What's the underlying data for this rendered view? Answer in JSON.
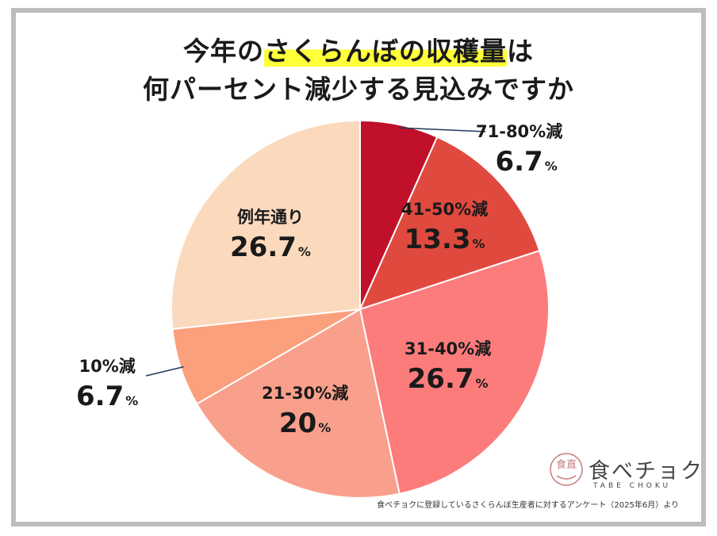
{
  "title": {
    "line1_prefix": "今年の",
    "line1_highlight": "さくらんぼの収穫量",
    "line1_suffix": "は",
    "line2": "何パーセント減少する見込みですか"
  },
  "chart_data": {
    "type": "pie",
    "slices": [
      {
        "label": "71-80%減",
        "value": 6.7,
        "display": "6.7",
        "color": "#c0102a"
      },
      {
        "label": "41-50%減",
        "value": 13.3,
        "display": "13.3",
        "color": "#e04a3e"
      },
      {
        "label": "31-40%減",
        "value": 26.7,
        "display": "26.7",
        "color": "#fc7c7c"
      },
      {
        "label": "21-30%減",
        "value": 20,
        "display": "20",
        "color": "#f9a08c"
      },
      {
        "label": "10%減",
        "value": 6.7,
        "display": "6.7",
        "color": "#fba07c"
      },
      {
        "label": "例年通り",
        "value": 26.7,
        "display": "26.7",
        "color": "#fbd9bd"
      }
    ],
    "unit": "%",
    "start_angle": "12 o'clock",
    "direction": "clockwise"
  },
  "logo": {
    "brand": "食べチョク",
    "subtitle": "TABE CHOKU",
    "mark_text": "食直"
  },
  "source": "食べチョクに登録しているさくらんぼ生産者に対するアンケート（2025年6月）より"
}
